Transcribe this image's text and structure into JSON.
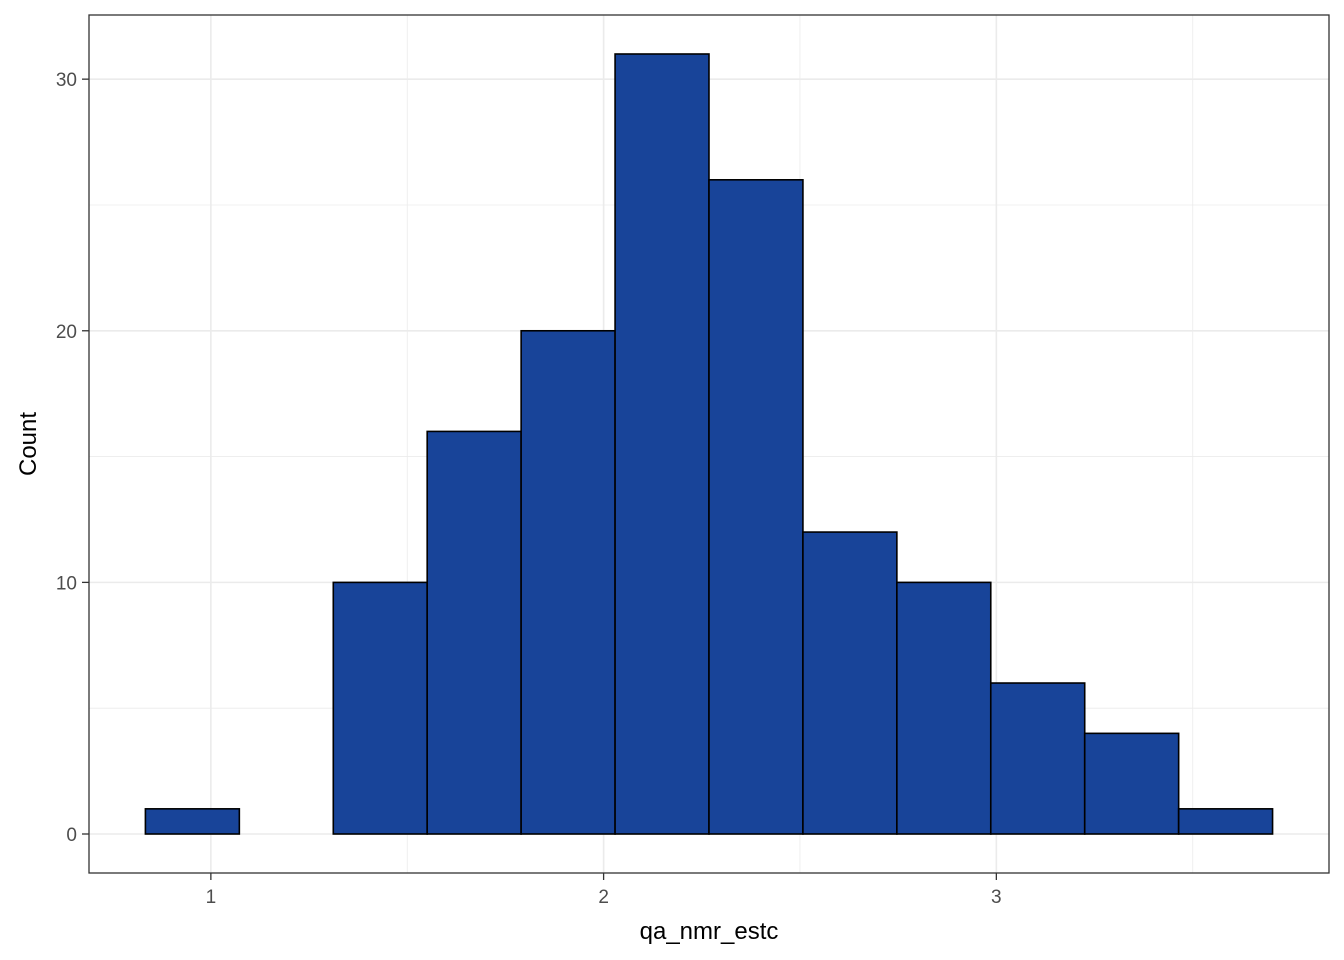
{
  "chart_data": {
    "type": "histogram",
    "title": "",
    "xlabel": "qa_nmr_estc",
    "ylabel": "Count",
    "bins": [
      {
        "x0": 0.8333,
        "x1": 1.0725,
        "count": 1
      },
      {
        "x0": 1.0725,
        "x1": 1.3117,
        "count": 0
      },
      {
        "x0": 1.3117,
        "x1": 1.5508,
        "count": 10
      },
      {
        "x0": 1.5508,
        "x1": 1.79,
        "count": 16
      },
      {
        "x0": 1.79,
        "x1": 2.0292,
        "count": 20
      },
      {
        "x0": 2.0292,
        "x1": 2.2683,
        "count": 31
      },
      {
        "x0": 2.2683,
        "x1": 2.5075,
        "count": 26
      },
      {
        "x0": 2.5075,
        "x1": 2.7467,
        "count": 12
      },
      {
        "x0": 2.7467,
        "x1": 2.9858,
        "count": 10
      },
      {
        "x0": 2.9858,
        "x1": 3.225,
        "count": 6
      },
      {
        "x0": 3.225,
        "x1": 3.4642,
        "count": 4
      },
      {
        "x0": 3.4642,
        "x1": 3.7033,
        "count": 1
      }
    ],
    "x_ticks": [
      1,
      2,
      3
    ],
    "x_tick_labels": [
      "1",
      "2",
      "3"
    ],
    "y_ticks": [
      0,
      10,
      20,
      30
    ],
    "y_tick_labels": [
      "0",
      "10",
      "20",
      "30"
    ],
    "xlim": [
      0.6897,
      3.847
    ],
    "ylim": [
      -1.55,
      32.55
    ],
    "grid": true,
    "colors": {
      "bar_fill": "#184499",
      "bar_stroke": "#000000",
      "grid": "#ebebeb",
      "panel_border": "#333333"
    }
  }
}
